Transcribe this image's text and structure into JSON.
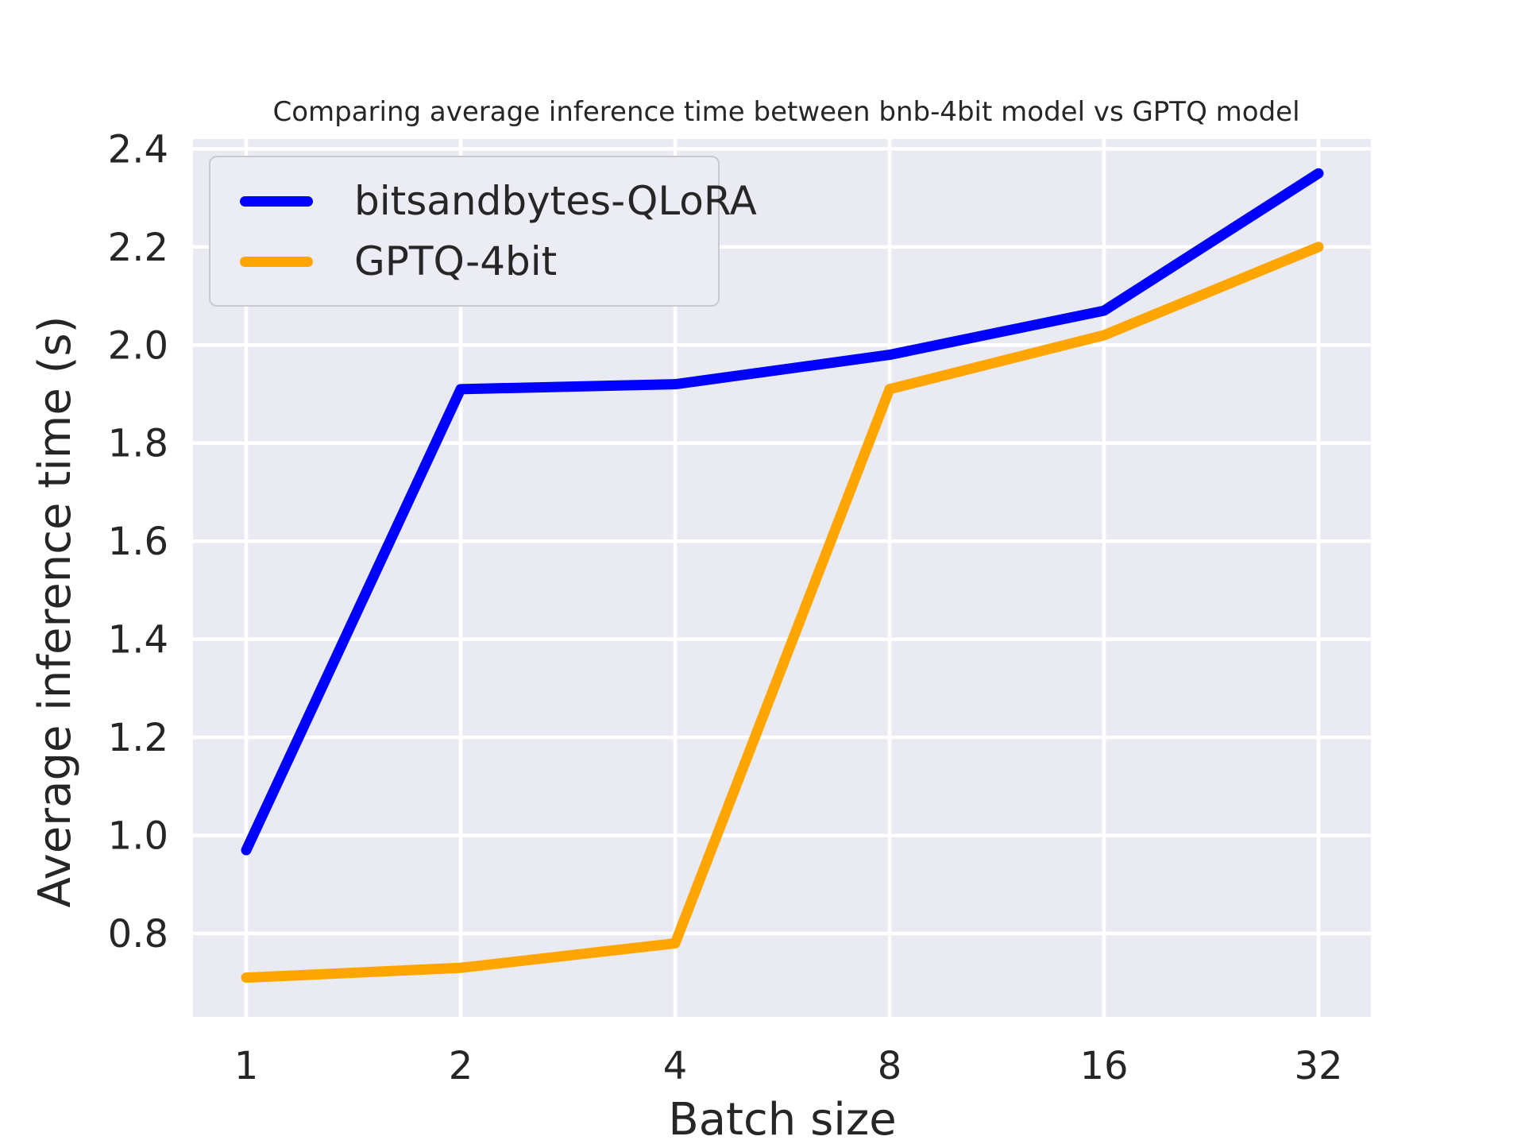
{
  "chart_data": {
    "type": "line",
    "title": "Comparing average inference time between bnb-4bit model vs GPTQ model",
    "xlabel": "Batch size",
    "ylabel": "Average inference time (s)",
    "x": [
      1,
      2,
      4,
      8,
      16,
      32
    ],
    "x_scale": "log2",
    "xtick_labels": [
      "1",
      "2",
      "4",
      "8",
      "16",
      "32"
    ],
    "yticks": [
      0.8,
      1.0,
      1.2,
      1.4,
      1.6,
      1.8,
      2.0,
      2.2,
      2.4
    ],
    "ytick_labels": [
      "0.8",
      "1.0",
      "1.2",
      "1.4",
      "1.6",
      "1.8",
      "2.0",
      "2.2",
      "2.4"
    ],
    "ylim": [
      0.63,
      2.42
    ],
    "grid": true,
    "legend_position": "upper left",
    "series": [
      {
        "name": "bitsandbytes-QLoRA",
        "color": "#0000ff",
        "values": [
          0.97,
          1.91,
          1.92,
          1.98,
          2.07,
          2.35
        ]
      },
      {
        "name": "GPTQ-4bit",
        "color": "#ffa500",
        "values": [
          0.71,
          0.73,
          0.78,
          1.91,
          2.02,
          2.2
        ]
      }
    ],
    "colors": {
      "plot_background": "#eaeaf2",
      "grid_line": "#ffffff",
      "text": "#262626",
      "figure_background": "#ffffff"
    }
  }
}
